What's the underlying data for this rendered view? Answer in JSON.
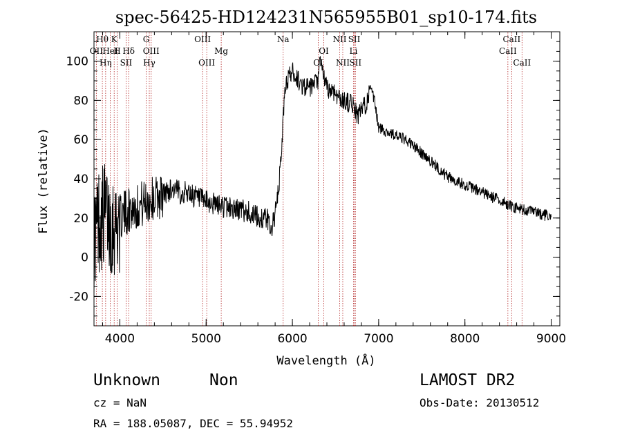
{
  "chart_data": {
    "type": "line",
    "title": "spec-56425-HD124231N565955B01_sp10-174.fits",
    "xlabel": "Wavelength (Å)",
    "ylabel": "Flux (relative)",
    "xlim": [
      3700,
      9100
    ],
    "ylim": [
      -35,
      115
    ],
    "x_ticks": [
      4000,
      5000,
      6000,
      7000,
      8000,
      9000
    ],
    "y_ticks": [
      -20,
      0,
      20,
      40,
      60,
      80,
      100
    ],
    "grid": false,
    "spectrum_nodes": {
      "x": [
        3700,
        3760,
        3830,
        3900,
        3950,
        4000,
        4100,
        4200,
        4300,
        4400,
        4500,
        4600,
        4700,
        4800,
        4900,
        5000,
        5100,
        5200,
        5300,
        5400,
        5500,
        5600,
        5700,
        5760,
        5800,
        5830,
        5860,
        5880,
        5900,
        5920,
        5960,
        6000,
        6100,
        6200,
        6300,
        6320,
        6400,
        6500,
        6560,
        6600,
        6700,
        6720,
        6760,
        6800,
        6850,
        6880,
        6900,
        6950,
        7000,
        7100,
        7200,
        7300,
        7400,
        7500,
        7600,
        7700,
        7800,
        7900,
        8000,
        8100,
        8200,
        8300,
        8400,
        8500,
        8600,
        8700,
        8800,
        8900,
        8950,
        9000
      ],
      "y": [
        10,
        20,
        22,
        18,
        17,
        20,
        24,
        26,
        28,
        30,
        32,
        35,
        33,
        33,
        30,
        28,
        27,
        26,
        25,
        24,
        23,
        20,
        20,
        15,
        22,
        30,
        45,
        60,
        75,
        88,
        92,
        95,
        88,
        86,
        90,
        100,
        86,
        84,
        80,
        80,
        78,
        76,
        72,
        75,
        78,
        82,
        86,
        80,
        66,
        64,
        62,
        60,
        57,
        53,
        49,
        45,
        41,
        39,
        37,
        35,
        33,
        31,
        29,
        27,
        25,
        24,
        23,
        22,
        21,
        20
      ]
    },
    "spectral_lines": [
      {
        "label": "Hθ",
        "x": 3797,
        "row": 0
      },
      {
        "label": "OII",
        "x": 3727,
        "row": 1
      },
      {
        "label": "Hη",
        "x": 3835,
        "row": 2
      },
      {
        "label": "HeI",
        "x": 3889,
        "row": 1
      },
      {
        "label": "K",
        "x": 3934,
        "row": 0
      },
      {
        "label": "H",
        "x": 3968,
        "row": 1
      },
      {
        "label": "Hδ",
        "x": 4102,
        "row": 1
      },
      {
        "label": "SII",
        "x": 4072,
        "row": 2
      },
      {
        "label": "G",
        "x": 4305,
        "row": 0
      },
      {
        "label": "OIII",
        "x": 4363,
        "row": 1
      },
      {
        "label": "Hγ",
        "x": 4341,
        "row": 2
      },
      {
        "label": "OIII",
        "x": 4959,
        "row": 0
      },
      {
        "label": "OIII",
        "x": 5007,
        "row": 2
      },
      {
        "label": "Mg",
        "x": 5175,
        "row": 1
      },
      {
        "label": "Na",
        "x": 5893,
        "row": 0
      },
      {
        "label": "OI",
        "x": 6300,
        "row": 2
      },
      {
        "label": "OI",
        "x": 6364,
        "row": 1
      },
      {
        "label": "NII",
        "x": 6548,
        "row": 0
      },
      {
        "label": "NII",
        "x": 6584,
        "row": 2
      },
      {
        "label": "SII",
        "x": 6717,
        "row": 0
      },
      {
        "label": "Li",
        "x": 6708,
        "row": 1
      },
      {
        "label": "SII",
        "x": 6731,
        "row": 2
      },
      {
        "label": "CaII",
        "x": 8498,
        "row": 1
      },
      {
        "label": "CaII",
        "x": 8542,
        "row": 0
      },
      {
        "label": "CaII",
        "x": 8662,
        "row": 2
      }
    ]
  },
  "info": {
    "class_label": "Unknown",
    "subclass_label": "Non",
    "survey": "LAMOST DR2",
    "cz": "cz = NaN",
    "obs_date": "Obs-Date: 20130512",
    "coords": "RA = 188.05087, DEC =  55.94952"
  },
  "colors": {
    "spectrum": "#000000",
    "line_markers": "#b22222",
    "background": "#ffffff"
  }
}
